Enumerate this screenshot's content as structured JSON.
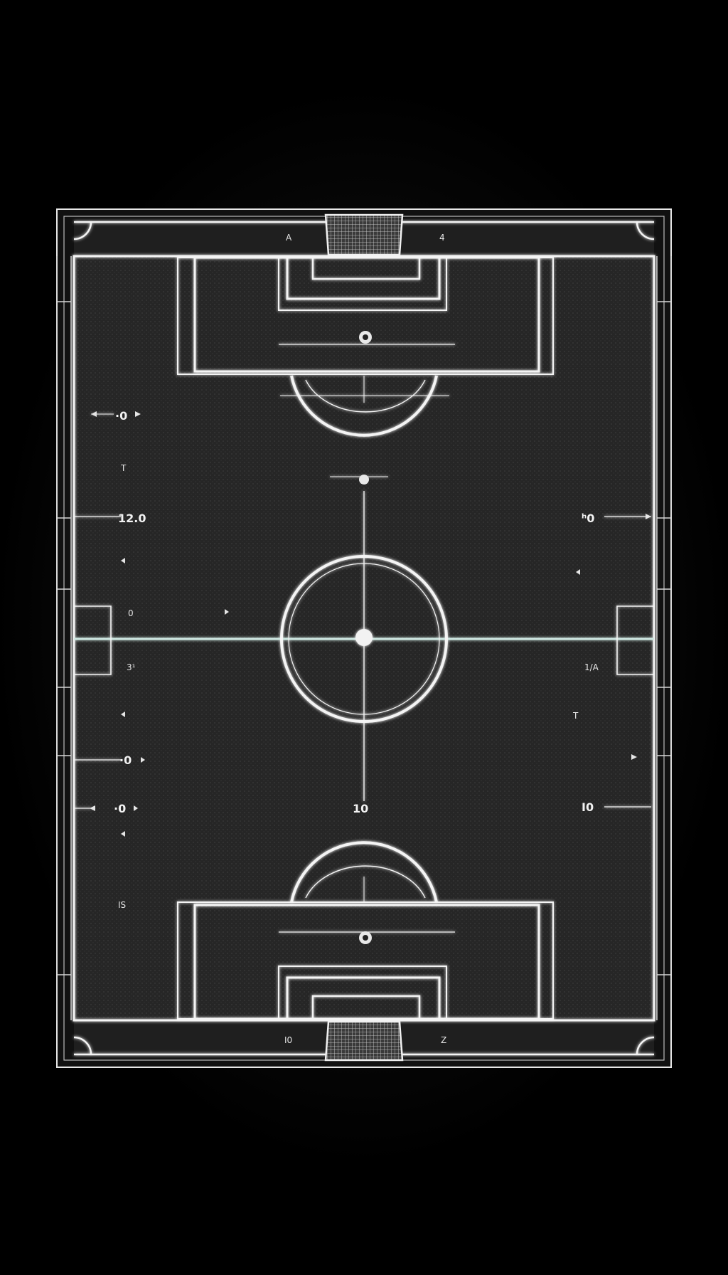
{
  "colors": {
    "background": "#000000",
    "pitch_surface": "#2b2b2b",
    "line": "#f4f4f4",
    "halfway_tint": "#cfe8e2"
  },
  "icons": {
    "goal_top": "goal-net-icon",
    "goal_bottom": "goal-net-icon",
    "center_spot": "spot-icon",
    "penalty_spot": "spot-icon"
  },
  "labels": {
    "top_left": "A",
    "top_right": "4",
    "bottom_left": "I0",
    "bottom_right": "Z",
    "left_1": "·0",
    "left_2": "T",
    "left_3": "12.0",
    "left_4": "0",
    "left_5": "3¹",
    "left_6": "·0",
    "left_7": "·0",
    "left_8": "IS",
    "right_1": "ʰ0",
    "right_2": "1/A",
    "right_3": "T",
    "right_4": "I0",
    "center_top": "",
    "center_bottom": "10"
  }
}
